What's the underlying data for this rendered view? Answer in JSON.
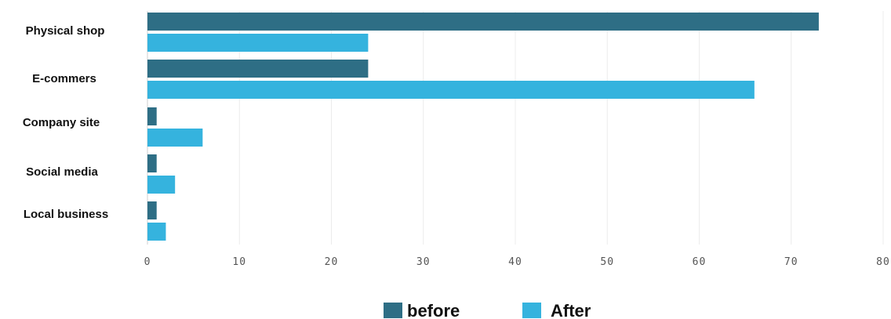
{
  "chart_data": {
    "type": "bar",
    "orientation": "horizontal",
    "categories": [
      "Physical shop",
      "E-commers",
      "Company site",
      "Social media",
      "Local business"
    ],
    "series": [
      {
        "name": "before",
        "color": "#2e6e85",
        "values": [
          73,
          24,
          1,
          1,
          1
        ]
      },
      {
        "name": "After",
        "color": "#35b3de",
        "values": [
          24,
          66,
          6,
          3,
          2
        ]
      }
    ],
    "x_ticks": [
      "0",
      "10",
      "20",
      "30",
      "40",
      "50",
      "60",
      "70",
      "80"
    ],
    "xlim": [
      0,
      80
    ],
    "grid": true,
    "legend_position": "bottom-center",
    "title": "",
    "xlabel": "",
    "ylabel": ""
  }
}
